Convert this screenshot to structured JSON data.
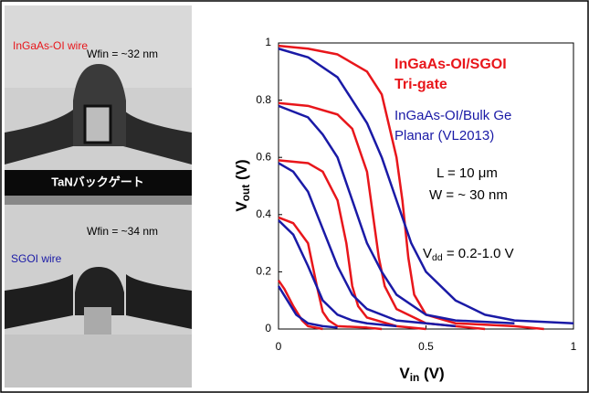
{
  "image": {
    "top_label": "InGaAs-OI wire",
    "top_width": "Wfin = ~32 nm",
    "gate_label": "TaNバックゲート",
    "bottom_width": "Wfin = ~34 nm",
    "bottom_label": "SGOI wire"
  },
  "chart_data": {
    "type": "line",
    "xlabel": {
      "text": "V",
      "sub": "in",
      "suffix": " (V)"
    },
    "ylabel": {
      "text": "V",
      "sub": "out",
      "suffix": " (V)"
    },
    "xlim": [
      0,
      1
    ],
    "ylim": [
      0,
      1
    ],
    "xticks": [
      0,
      0.5,
      1
    ],
    "yticks": [
      0,
      0.2,
      0.4,
      0.6,
      0.8,
      1
    ],
    "annotations": [
      {
        "text": "L = 10 μm"
      },
      {
        "text": "W = ~ 30 nm"
      },
      {
        "text": "V",
        "sub": "dd",
        "suffix": " = 0.2-1.0 V"
      }
    ],
    "series": [
      {
        "name": "InGaAs-OI/SGOI Tri-gate",
        "color": "#e8161b",
        "curves": [
          {
            "x": [
              0,
              0.1,
              0.2,
              0.3,
              0.35,
              0.4,
              0.42,
              0.44,
              0.46,
              0.5,
              0.6,
              0.8,
              0.9
            ],
            "values": [
              0.99,
              0.98,
              0.96,
              0.9,
              0.82,
              0.6,
              0.45,
              0.25,
              0.12,
              0.05,
              0.02,
              0.01,
              0
            ]
          },
          {
            "x": [
              0,
              0.1,
              0.2,
              0.25,
              0.3,
              0.32,
              0.34,
              0.36,
              0.4,
              0.5,
              0.6,
              0.7
            ],
            "values": [
              0.79,
              0.78,
              0.75,
              0.7,
              0.55,
              0.4,
              0.25,
              0.15,
              0.07,
              0.02,
              0.01,
              0
            ]
          },
          {
            "x": [
              0,
              0.1,
              0.15,
              0.2,
              0.23,
              0.25,
              0.27,
              0.3,
              0.4,
              0.5
            ],
            "values": [
              0.59,
              0.58,
              0.55,
              0.45,
              0.3,
              0.15,
              0.08,
              0.04,
              0.01,
              0
            ]
          },
          {
            "x": [
              0,
              0.05,
              0.1,
              0.13,
              0.15,
              0.17,
              0.2,
              0.3,
              0.35
            ],
            "values": [
              0.39,
              0.37,
              0.3,
              0.15,
              0.06,
              0.03,
              0.01,
              0.005,
              0
            ]
          },
          {
            "x": [
              0,
              0.02,
              0.05,
              0.08,
              0.1,
              0.15
            ],
            "values": [
              0.17,
              0.14,
              0.08,
              0.03,
              0.01,
              0
            ]
          }
        ]
      },
      {
        "name": "InGaAs-OI/Bulk Ge Planar (VL2013)",
        "color": "#1a1aa6",
        "curves": [
          {
            "x": [
              0,
              0.1,
              0.2,
              0.3,
              0.35,
              0.4,
              0.45,
              0.5,
              0.6,
              0.7,
              0.8,
              1
            ],
            "values": [
              0.98,
              0.95,
              0.88,
              0.72,
              0.6,
              0.45,
              0.3,
              0.2,
              0.1,
              0.05,
              0.03,
              0.02
            ]
          },
          {
            "x": [
              0,
              0.1,
              0.15,
              0.2,
              0.25,
              0.3,
              0.35,
              0.4,
              0.5,
              0.6,
              0.8
            ],
            "values": [
              0.78,
              0.74,
              0.68,
              0.6,
              0.45,
              0.3,
              0.2,
              0.12,
              0.05,
              0.03,
              0.02
            ]
          },
          {
            "x": [
              0,
              0.05,
              0.1,
              0.15,
              0.2,
              0.25,
              0.3,
              0.4,
              0.5,
              0.6
            ],
            "values": [
              0.58,
              0.55,
              0.48,
              0.35,
              0.22,
              0.12,
              0.07,
              0.03,
              0.02,
              0.01
            ]
          },
          {
            "x": [
              0,
              0.05,
              0.1,
              0.15,
              0.2,
              0.25,
              0.3,
              0.4
            ],
            "values": [
              0.38,
              0.33,
              0.22,
              0.1,
              0.05,
              0.03,
              0.02,
              0.01
            ]
          },
          {
            "x": [
              0,
              0.03,
              0.06,
              0.1,
              0.15,
              0.2
            ],
            "values": [
              0.15,
              0.1,
              0.05,
              0.02,
              0.01,
              0.005
            ]
          }
        ]
      }
    ]
  }
}
